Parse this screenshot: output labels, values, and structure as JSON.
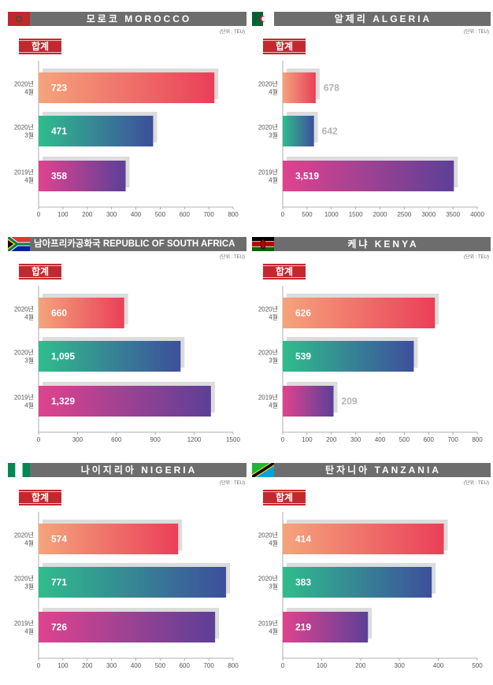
{
  "unit_label": "(단위 : TEU)",
  "sum_label": "합계",
  "category_labels": [
    [
      "2020년",
      "4월"
    ],
    [
      "2020년",
      "3월"
    ],
    [
      "2019년",
      "4월"
    ]
  ],
  "colors": {
    "header_bg": "#6d6d6d",
    "sum_badge": "#c3282d",
    "shadow": "#dcdcdc",
    "bar_top": [
      "#f5a47c",
      "#ea3f58"
    ],
    "bar_mid": [
      "#2fbd8c",
      "#3d4f9c"
    ],
    "bar_bot": [
      "#e0438e",
      "#5c4097"
    ]
  },
  "chart_data": [
    {
      "type": "bar",
      "title": "모로코 MOROCCO",
      "flag": "morocco",
      "categories": [
        "2020년 4월",
        "2020년 3월",
        "2019년 4월"
      ],
      "values": [
        723,
        471,
        358
      ],
      "value_labels": [
        "723",
        "471",
        "358"
      ],
      "xlim": [
        0,
        800
      ],
      "ticks": [
        0,
        100,
        200,
        300,
        400,
        500,
        600,
        700,
        800
      ]
    },
    {
      "type": "bar",
      "title": "알제리 ALGERIA",
      "flag": "algeria",
      "categories": [
        "2020년 4월",
        "2020년 3월",
        "2019년 4월"
      ],
      "values": [
        678,
        642,
        3519
      ],
      "value_labels": [
        "678",
        "642",
        "3,519"
      ],
      "xlim": [
        0,
        4000
      ],
      "ticks": [
        0,
        500,
        1000,
        1500,
        2000,
        2500,
        3000,
        3500,
        4000
      ]
    },
    {
      "type": "bar",
      "title": "남아프리카공화국 REPUBLIC OF SOUTH AFRICA",
      "flag": "south-africa",
      "categories": [
        "2020년 4월",
        "2020년 3월",
        "2019년 4월"
      ],
      "values": [
        660,
        1095,
        1329
      ],
      "value_labels": [
        "660",
        "1,095",
        "1,329"
      ],
      "xlim": [
        0,
        1500
      ],
      "ticks": [
        0,
        300,
        600,
        900,
        1200,
        1500
      ]
    },
    {
      "type": "bar",
      "title": "케냐 KENYA",
      "flag": "kenya",
      "categories": [
        "2020년 4월",
        "2020년 3월",
        "2019년 4월"
      ],
      "values": [
        626,
        539,
        209
      ],
      "value_labels": [
        "626",
        "539",
        "209"
      ],
      "xlim": [
        0,
        800
      ],
      "ticks": [
        0,
        100,
        200,
        300,
        400,
        500,
        600,
        700,
        800
      ]
    },
    {
      "type": "bar",
      "title": "나이지리아 NIGERIA",
      "flag": "nigeria",
      "categories": [
        "2020년 4월",
        "2020년 3월",
        "2019년 4월"
      ],
      "values": [
        574,
        771,
        726
      ],
      "value_labels": [
        "574",
        "771",
        "726"
      ],
      "xlim": [
        0,
        800
      ],
      "ticks": [
        0,
        100,
        200,
        300,
        400,
        500,
        600,
        700,
        800
      ]
    },
    {
      "type": "bar",
      "title": "탄자니아 TANZANIA",
      "flag": "tanzania",
      "categories": [
        "2020년 4월",
        "2020년 3월",
        "2019년 4월"
      ],
      "values": [
        414,
        383,
        219
      ],
      "value_labels": [
        "414",
        "383",
        "219"
      ],
      "xlim": [
        0,
        500
      ],
      "ticks": [
        0,
        100,
        200,
        300,
        400,
        500
      ]
    }
  ]
}
